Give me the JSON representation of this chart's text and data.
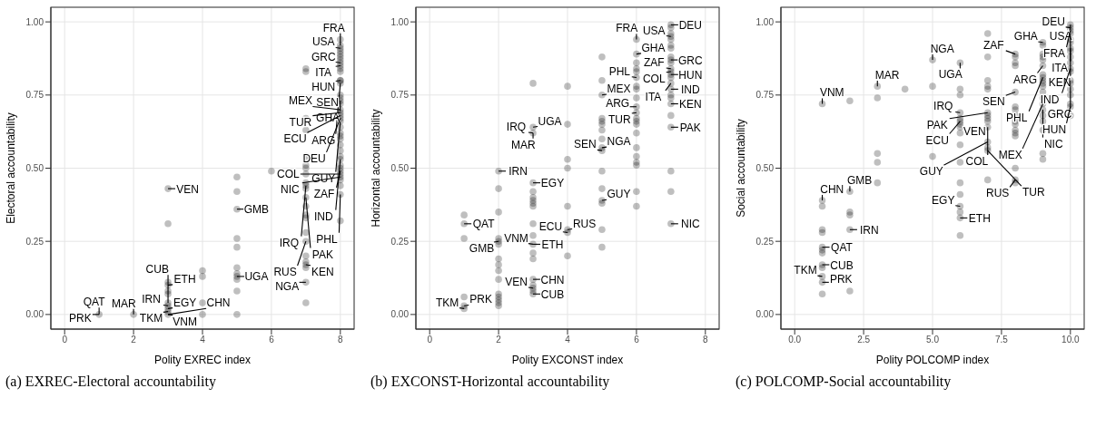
{
  "chart_data": [
    {
      "type": "scatter",
      "title": "(a) EXREC-Electoral accountability",
      "xlabel": "Polity EXREC index",
      "ylabel": "Electoral accountability",
      "xlim": [
        -0.4,
        8.4
      ],
      "ylim": [
        -0.05,
        1.05
      ],
      "xticks": [
        0,
        2,
        4,
        6,
        8
      ],
      "yticks": [
        {
          "value": 0,
          "label": "0.00"
        },
        {
          "value": 0.25,
          "label": "0.25"
        },
        {
          "value": 0.5,
          "label": "0.50"
        },
        {
          "value": 0.75,
          "label": "0.75"
        },
        {
          "value": 1,
          "label": "1.00"
        }
      ],
      "grid": true,
      "marker": "circle",
      "series": [
        {
          "color": "#000000",
          "x": [
            1,
            2,
            3,
            3,
            3,
            3,
            3,
            3,
            3,
            3,
            3,
            3,
            3,
            4,
            4,
            4,
            4,
            5,
            5,
            5,
            5,
            5,
            5,
            5,
            5,
            5,
            5,
            5,
            6,
            7,
            7,
            7,
            7,
            7,
            7,
            7,
            7,
            7,
            7,
            7,
            7,
            7,
            7,
            7,
            7,
            7,
            7,
            7,
            7,
            7,
            7,
            7,
            8,
            8,
            8,
            8,
            8,
            8,
            8,
            8,
            8,
            8,
            8,
            8,
            8,
            8,
            8,
            8,
            8,
            8,
            8,
            8,
            8,
            8,
            8,
            8,
            8,
            8,
            8,
            8,
            8,
            8,
            8,
            8,
            8,
            8,
            8,
            8,
            8,
            8,
            8,
            8
          ],
          "values": [
            0,
            0,
            0.43,
            0.31,
            0.11,
            0.1,
            0.08,
            0.07,
            0.04,
            0.03,
            0.02,
            0.01,
            0,
            0.15,
            0.13,
            0.04,
            0,
            0.47,
            0.42,
            0.36,
            0.26,
            0.23,
            0.16,
            0.14,
            0.13,
            0.12,
            0.08,
            0,
            0.49,
            0.84,
            0.83,
            0.67,
            0.63,
            0.54,
            0.51,
            0.5,
            0.48,
            0.45,
            0.44,
            0.43,
            0.4,
            0.37,
            0.34,
            0.33,
            0.28,
            0.25,
            0.2,
            0.18,
            0.17,
            0.16,
            0.11,
            0.04,
            0.94,
            0.92,
            0.91,
            0.9,
            0.89,
            0.88,
            0.87,
            0.86,
            0.85,
            0.84,
            0.83,
            0.8,
            0.8,
            0.79,
            0.75,
            0.74,
            0.73,
            0.72,
            0.7,
            0.69,
            0.68,
            0.67,
            0.66,
            0.64,
            0.62,
            0.61,
            0.6,
            0.58,
            0.56,
            0.54,
            0.53,
            0.51,
            0.5,
            0.49,
            0.48,
            0.47,
            0.46,
            0.44,
            0.41,
            0.32
          ]
        }
      ],
      "annotations": [
        {
          "text": "USA",
          "x": 8,
          "y": 0.91
        },
        {
          "text": "FRA",
          "x": 8,
          "y": 0.92
        },
        {
          "text": "GRC",
          "x": 8,
          "y": 0.86
        },
        {
          "text": "ITA",
          "x": 8,
          "y": 0.85
        },
        {
          "text": "HUN",
          "x": 8,
          "y": 0.8
        },
        {
          "text": "ARG",
          "x": 8,
          "y": 0.79
        },
        {
          "text": "SEN",
          "x": 8,
          "y": 0.74
        },
        {
          "text": "GHA",
          "x": 8,
          "y": 0.73
        },
        {
          "text": "MEX",
          "x": 8,
          "y": 0.7
        },
        {
          "text": "TUR",
          "x": 8,
          "y": 0.69
        },
        {
          "text": "ECU",
          "x": 8,
          "y": 0.68
        },
        {
          "text": "DEU",
          "x": 8,
          "y": 0.67
        },
        {
          "text": "GUY",
          "x": 8,
          "y": 0.66
        },
        {
          "text": "IND",
          "x": 8,
          "y": 0.53
        },
        {
          "text": "ZAF",
          "x": 8,
          "y": 0.49
        },
        {
          "text": "COL",
          "x": 8,
          "y": 0.48
        },
        {
          "text": "NIC",
          "x": 8,
          "y": 0.47
        },
        {
          "text": "PHL",
          "x": 8,
          "y": 0.41
        },
        {
          "text": "IRQ",
          "x": 7,
          "y": 0.44
        },
        {
          "text": "PAK",
          "x": 7,
          "y": 0.4
        },
        {
          "text": "RUS",
          "x": 7,
          "y": 0.25
        },
        {
          "text": "KEN",
          "x": 7,
          "y": 0.17
        },
        {
          "text": "NGA",
          "x": 7,
          "y": 0.11
        },
        {
          "text": "VEN",
          "x": 3,
          "y": 0.43
        },
        {
          "text": "GMB",
          "x": 5,
          "y": 0.36
        },
        {
          "text": "UGA",
          "x": 5,
          "y": 0.13
        },
        {
          "text": "ETH",
          "x": 3,
          "y": 0.1
        },
        {
          "text": "EGY",
          "x": 3,
          "y": 0.02
        },
        {
          "text": "IRN",
          "x": 3,
          "y": 0.03
        },
        {
          "text": "CUB",
          "x": 3,
          "y": 0.04
        },
        {
          "text": "TKM",
          "x": 3,
          "y": 0.01
        },
        {
          "text": "VNM",
          "x": 3,
          "y": 0
        },
        {
          "text": "CHN",
          "x": 3,
          "y": 0
        },
        {
          "text": "MAR",
          "x": 2,
          "y": 0
        },
        {
          "text": "QAT",
          "x": 1,
          "y": 0
        },
        {
          "text": "PRK",
          "x": 1,
          "y": 0
        }
      ]
    },
    {
      "type": "scatter",
      "title": "(b) EXCONST-Horizontal accountability",
      "xlabel": "Polity EXCONST index",
      "ylabel": "Horizontal accountability",
      "xlim": [
        -0.4,
        8.4
      ],
      "ylim": [
        -0.05,
        1.05
      ],
      "xticks": [
        0,
        2,
        4,
        6,
        8
      ],
      "yticks": [
        {
          "value": 0,
          "label": "0.00"
        },
        {
          "value": 0.25,
          "label": "0.25"
        },
        {
          "value": 0.5,
          "label": "0.50"
        },
        {
          "value": 0.75,
          "label": "0.75"
        },
        {
          "value": 1,
          "label": "1.00"
        }
      ],
      "grid": true,
      "marker": "circle",
      "series": [
        {
          "color": "#000000",
          "x": [
            1,
            1,
            1,
            1,
            1,
            1,
            2,
            2,
            2,
            2,
            2,
            2,
            2,
            2,
            2,
            2,
            2,
            2,
            2,
            2,
            2,
            3,
            3,
            3,
            3,
            3,
            3,
            3,
            3,
            3,
            3,
            3,
            3,
            3,
            3,
            3,
            3,
            3,
            3,
            3,
            4,
            4,
            4,
            4,
            4,
            4,
            4,
            4,
            5,
            5,
            5,
            5,
            5,
            5,
            5,
            5,
            5,
            5,
            5,
            5,
            5,
            5,
            5,
            5,
            6,
            6,
            6,
            6,
            6,
            6,
            6,
            6,
            6,
            6,
            6,
            6,
            6,
            6,
            6,
            6,
            6,
            6,
            6,
            6,
            6,
            7,
            7,
            7,
            7,
            7,
            7,
            7,
            7,
            7,
            7,
            7,
            7,
            7,
            7,
            7,
            7,
            7,
            7,
            7,
            7,
            7,
            7,
            7,
            7
          ],
          "values": [
            0.34,
            0.31,
            0.26,
            0.06,
            0.03,
            0.02,
            0.49,
            0.43,
            0.35,
            0.26,
            0.25,
            0.24,
            0.19,
            0.17,
            0.15,
            0.12,
            0.07,
            0.06,
            0.05,
            0.04,
            0.03,
            0.79,
            0.64,
            0.62,
            0.45,
            0.42,
            0.4,
            0.39,
            0.38,
            0.37,
            0.31,
            0.27,
            0.24,
            0.21,
            0.19,
            0.12,
            0.1,
            0.09,
            0.08,
            0.07,
            0.78,
            0.65,
            0.53,
            0.5,
            0.37,
            0.29,
            0.28,
            0.2,
            0.88,
            0.8,
            0.75,
            0.67,
            0.66,
            0.65,
            0.63,
            0.6,
            0.57,
            0.56,
            0.49,
            0.43,
            0.39,
            0.38,
            0.29,
            0.23,
            0.94,
            0.89,
            0.86,
            0.84,
            0.83,
            0.81,
            0.78,
            0.77,
            0.74,
            0.71,
            0.69,
            0.67,
            0.66,
            0.65,
            0.62,
            0.57,
            0.54,
            0.52,
            0.51,
            0.42,
            0.37,
            0.99,
            0.98,
            0.96,
            0.95,
            0.94,
            0.92,
            0.91,
            0.88,
            0.87,
            0.86,
            0.84,
            0.83,
            0.82,
            0.81,
            0.79,
            0.77,
            0.75,
            0.74,
            0.72,
            0.68,
            0.64,
            0.49,
            0.42,
            0.31
          ]
        }
      ],
      "annotations": [
        {
          "text": "DEU",
          "x": 7,
          "y": 0.99
        },
        {
          "text": "USA",
          "x": 7,
          "y": 0.95
        },
        {
          "text": "FRA",
          "x": 6,
          "y": 0.94
        },
        {
          "text": "GRC",
          "x": 7,
          "y": 0.87
        },
        {
          "text": "ZAF",
          "x": 7,
          "y": 0.84
        },
        {
          "text": "COL",
          "x": 7,
          "y": 0.83
        },
        {
          "text": "HUN",
          "x": 7,
          "y": 0.82
        },
        {
          "text": "GHA",
          "x": 6,
          "y": 0.89
        },
        {
          "text": "IND",
          "x": 7,
          "y": 0.77
        },
        {
          "text": "ITA",
          "x": 7,
          "y": 0.79
        },
        {
          "text": "PHL",
          "x": 6,
          "y": 0.81
        },
        {
          "text": "MEX",
          "x": 5,
          "y": 0.75
        },
        {
          "text": "ARG",
          "x": 6,
          "y": 0.71
        },
        {
          "text": "TUR",
          "x": 6,
          "y": 0.69
        },
        {
          "text": "KEN",
          "x": 7,
          "y": 0.72
        },
        {
          "text": "PAK",
          "x": 7,
          "y": 0.64
        },
        {
          "text": "UGA",
          "x": 3,
          "y": 0.64
        },
        {
          "text": "IRQ",
          "x": 3,
          "y": 0.62
        },
        {
          "text": "MAR",
          "x": 3,
          "y": 0.62
        },
        {
          "text": "NGA",
          "x": 5,
          "y": 0.57
        },
        {
          "text": "SEN",
          "x": 5,
          "y": 0.56
        },
        {
          "text": "IRN",
          "x": 2,
          "y": 0.49
        },
        {
          "text": "EGY",
          "x": 3,
          "y": 0.45
        },
        {
          "text": "GUY",
          "x": 5,
          "y": 0.39
        },
        {
          "text": "RUS",
          "x": 4,
          "y": 0.29
        },
        {
          "text": "ECU",
          "x": 4,
          "y": 0.28
        },
        {
          "text": "ETH",
          "x": 3,
          "y": 0.24
        },
        {
          "text": "VNM",
          "x": 3,
          "y": 0.24
        },
        {
          "text": "NIC",
          "x": 7,
          "y": 0.31
        },
        {
          "text": "QAT",
          "x": 1,
          "y": 0.31
        },
        {
          "text": "GMB",
          "x": 2,
          "y": 0.25
        },
        {
          "text": "CHN",
          "x": 3,
          "y": 0.12
        },
        {
          "text": "VEN",
          "x": 3,
          "y": 0.09
        },
        {
          "text": "CUB",
          "x": 3,
          "y": 0.07
        },
        {
          "text": "PRK",
          "x": 1,
          "y": 0.03
        },
        {
          "text": "TKM",
          "x": 1,
          "y": 0.02
        }
      ]
    },
    {
      "type": "scatter",
      "title": "(c) POLCOMP-Social accountability",
      "xlabel": "Polity POLCOMP index",
      "ylabel": "Social accountability",
      "xlim": [
        -0.5,
        10.5
      ],
      "ylim": [
        -0.05,
        1.05
      ],
      "xticks": [
        {
          "value": 0,
          "label": "0.0"
        },
        {
          "value": 2.5,
          "label": "2.5"
        },
        {
          "value": 5,
          "label": "5.0"
        },
        {
          "value": 7.5,
          "label": "7.5"
        },
        {
          "value": 10,
          "label": "10.0"
        }
      ],
      "yticks": [
        {
          "value": 0,
          "label": "0.00"
        },
        {
          "value": 0.25,
          "label": "0.25"
        },
        {
          "value": 0.5,
          "label": "0.50"
        },
        {
          "value": 0.75,
          "label": "0.75"
        },
        {
          "value": 1,
          "label": "1.00"
        }
      ],
      "grid": true,
      "marker": "circle",
      "series": [
        {
          "color": "#000000",
          "x": [
            1,
            1,
            1,
            1,
            1,
            1,
            1,
            1,
            1,
            1,
            1,
            1,
            1,
            2,
            2,
            2,
            2,
            2,
            2,
            3,
            3,
            3,
            3,
            3,
            4,
            5,
            5,
            5,
            6,
            6,
            6,
            6,
            6,
            6,
            6,
            6,
            6,
            6,
            6,
            6,
            6,
            6,
            6,
            6,
            6,
            7,
            7,
            7,
            7,
            7,
            7,
            7,
            7,
            7,
            7,
            7,
            7,
            7,
            7,
            8,
            8,
            8,
            8,
            8,
            8,
            8,
            8,
            8,
            8,
            8,
            8,
            8,
            8,
            8,
            8,
            9,
            9,
            9,
            9,
            9,
            9,
            9,
            9,
            9,
            9,
            9,
            9,
            9,
            9,
            9,
            9,
            9,
            9,
            9,
            9,
            10,
            10,
            10,
            10,
            10,
            10,
            10,
            10,
            10,
            10,
            10,
            10,
            10,
            10,
            10,
            10,
            10,
            10,
            10
          ],
          "values": [
            0.72,
            0.39,
            0.37,
            0.29,
            0.28,
            0.23,
            0.22,
            0.21,
            0.17,
            0.16,
            0.13,
            0.11,
            0.07,
            0.73,
            0.42,
            0.35,
            0.34,
            0.29,
            0.08,
            0.78,
            0.74,
            0.55,
            0.52,
            0.45,
            0.77,
            0.87,
            0.78,
            0.54,
            0.86,
            0.77,
            0.75,
            0.69,
            0.67,
            0.66,
            0.65,
            0.64,
            0.62,
            0.58,
            0.52,
            0.45,
            0.41,
            0.37,
            0.35,
            0.33,
            0.27,
            0.96,
            0.88,
            0.8,
            0.78,
            0.77,
            0.69,
            0.68,
            0.67,
            0.66,
            0.64,
            0.59,
            0.57,
            0.56,
            0.46,
            0.89,
            0.88,
            0.86,
            0.85,
            0.76,
            0.71,
            0.7,
            0.68,
            0.66,
            0.65,
            0.63,
            0.62,
            0.61,
            0.5,
            0.46,
            0.45,
            0.93,
            0.92,
            0.89,
            0.88,
            0.87,
            0.85,
            0.82,
            0.81,
            0.8,
            0.79,
            0.78,
            0.76,
            0.74,
            0.72,
            0.7,
            0.68,
            0.66,
            0.63,
            0.55,
            0.53,
            0.99,
            0.98,
            0.97,
            0.96,
            0.94,
            0.93,
            0.91,
            0.9,
            0.88,
            0.86,
            0.84,
            0.83,
            0.8,
            0.79,
            0.77,
            0.75,
            0.72,
            0.71,
            0.68
          ]
        }
      ],
      "annotations": [
        {
          "text": "DEU",
          "x": 10,
          "y": 0.98
        },
        {
          "text": "USA",
          "x": 10,
          "y": 0.99
        },
        {
          "text": "GHA",
          "x": 9,
          "y": 0.93
        },
        {
          "text": "FRA",
          "x": 10,
          "y": 0.97
        },
        {
          "text": "ITA",
          "x": 10,
          "y": 0.96
        },
        {
          "text": "KEN",
          "x": 10,
          "y": 0.91
        },
        {
          "text": "ZAF",
          "x": 8,
          "y": 0.89
        },
        {
          "text": "NGA",
          "x": 5,
          "y": 0.87
        },
        {
          "text": "ARG",
          "x": 9,
          "y": 0.85
        },
        {
          "text": "IND",
          "x": 10,
          "y": 0.84
        },
        {
          "text": "UGA",
          "x": 6,
          "y": 0.86
        },
        {
          "text": "MAR",
          "x": 3,
          "y": 0.78
        },
        {
          "text": "SEN",
          "x": 8,
          "y": 0.76
        },
        {
          "text": "GRC",
          "x": 10,
          "y": 0.8
        },
        {
          "text": "PHL",
          "x": 9,
          "y": 0.81
        },
        {
          "text": "MEX",
          "x": 9,
          "y": 0.72
        },
        {
          "text": "NIC",
          "x": 9,
          "y": 0.7
        },
        {
          "text": "HUN",
          "x": 10,
          "y": 0.71
        },
        {
          "text": "VNM",
          "x": 1,
          "y": 0.72
        },
        {
          "text": "IRQ",
          "x": 6,
          "y": 0.69
        },
        {
          "text": "PAK",
          "x": 7,
          "y": 0.69
        },
        {
          "text": "ECU",
          "x": 6,
          "y": 0.66
        },
        {
          "text": "COL",
          "x": 7,
          "y": 0.64
        },
        {
          "text": "GUY",
          "x": 7,
          "y": 0.59
        },
        {
          "text": "VEN",
          "x": 6,
          "y": 0.62
        },
        {
          "text": "TUR",
          "x": 7,
          "y": 0.56
        },
        {
          "text": "RUS",
          "x": 8,
          "y": 0.46
        },
        {
          "text": "GMB",
          "x": 2,
          "y": 0.42
        },
        {
          "text": "CHN",
          "x": 1,
          "y": 0.39
        },
        {
          "text": "EGY",
          "x": 6,
          "y": 0.37
        },
        {
          "text": "IRN",
          "x": 2,
          "y": 0.29
        },
        {
          "text": "ETH",
          "x": 6,
          "y": 0.33
        },
        {
          "text": "QAT",
          "x": 1,
          "y": 0.23
        },
        {
          "text": "CUB",
          "x": 1,
          "y": 0.17
        },
        {
          "text": "TKM",
          "x": 1,
          "y": 0.13
        },
        {
          "text": "PRK",
          "x": 1,
          "y": 0.11
        }
      ]
    }
  ]
}
